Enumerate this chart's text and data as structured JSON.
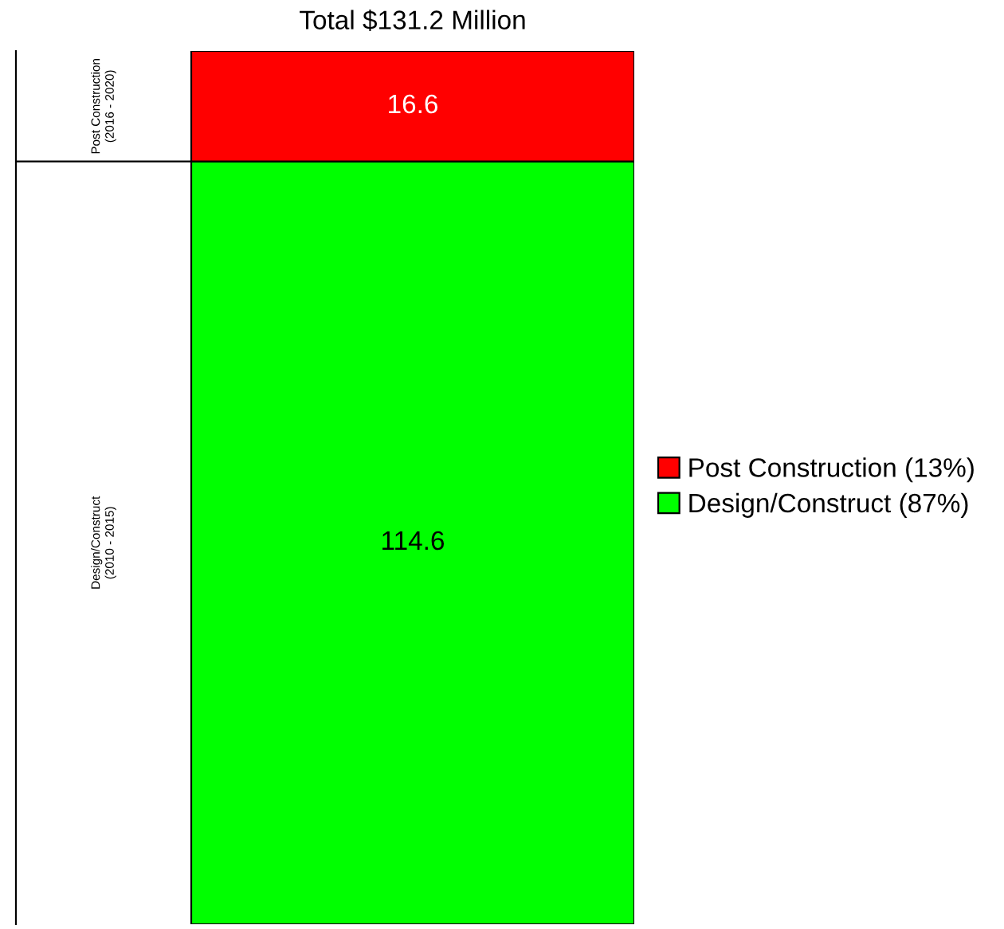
{
  "chart_data": {
    "type": "bar",
    "title": "Total $131.2 Million",
    "stacked": true,
    "categories": [
      null
    ],
    "series": [
      {
        "name": "Design/Construct (87%)",
        "color": "#00ff00",
        "values": [
          114.6
        ]
      },
      {
        "name": "Post Construction (13%)",
        "color": "#ff0000",
        "values": [
          16.6
        ]
      }
    ],
    "annotations": [
      "Design/Construct\n(2010 - 2015)",
      "Post Construction\n(2016 - 2020)"
    ],
    "data_labels": true,
    "legend": "right"
  }
}
